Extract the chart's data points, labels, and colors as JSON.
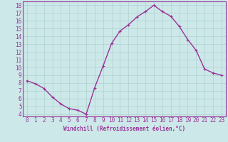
{
  "x": [
    0,
    1,
    2,
    3,
    4,
    5,
    6,
    7,
    8,
    9,
    10,
    11,
    12,
    13,
    14,
    15,
    16,
    17,
    18,
    19,
    20,
    21,
    22,
    23
  ],
  "y": [
    8.3,
    7.9,
    7.3,
    6.2,
    5.3,
    4.7,
    4.5,
    4.0,
    7.4,
    10.2,
    13.1,
    14.7,
    15.5,
    16.5,
    17.2,
    18.0,
    17.2,
    16.6,
    15.3,
    13.6,
    12.2,
    9.8,
    9.3,
    9.0
  ],
  "ylim_min": 3.7,
  "ylim_max": 18.5,
  "xlim_min": -0.5,
  "xlim_max": 23.5,
  "yticks": [
    4,
    5,
    6,
    7,
    8,
    9,
    10,
    11,
    12,
    13,
    14,
    15,
    16,
    17,
    18
  ],
  "xticks": [
    0,
    1,
    2,
    3,
    4,
    5,
    6,
    7,
    8,
    9,
    10,
    11,
    12,
    13,
    14,
    15,
    16,
    17,
    18,
    19,
    20,
    21,
    22,
    23
  ],
  "line_color": "#993399",
  "marker": "+",
  "bg_color": "#cce8e8",
  "grid_color": "#b0d0d0",
  "axis_color": "#993399",
  "xlabel": "Windchill (Refroidissement éolien,°C)",
  "xlabel_fontsize": 5.5,
  "tick_fontsize": 5.5,
  "line_width": 1.0,
  "marker_size": 3.5,
  "marker_edge_width": 0.8
}
